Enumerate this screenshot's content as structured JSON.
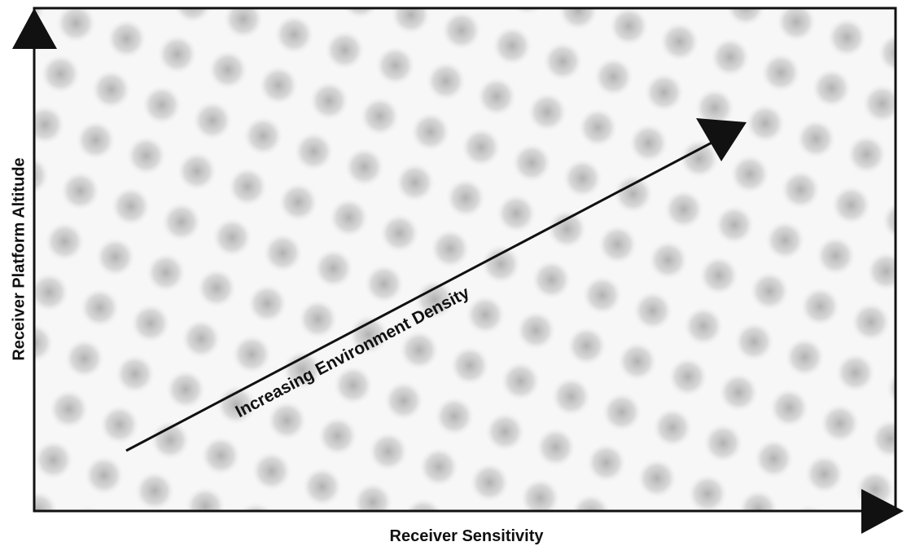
{
  "diagram": {
    "x_axis_label": "Receiver Sensitivity",
    "y_axis_label": "Receiver Platform Altitude",
    "arrow_label": "Increasing Environment Density"
  }
}
